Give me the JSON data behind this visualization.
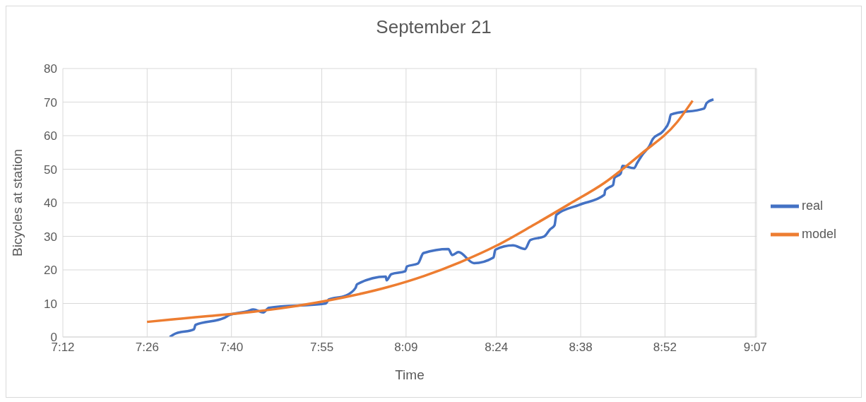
{
  "chart_data": {
    "type": "line",
    "title": "September 21",
    "xlabel": "Time",
    "ylabel": "Bicycles at station",
    "xlim": [
      7.2,
      9.12
    ],
    "xticks": [
      {
        "value": 7.2,
        "label": "7:12"
      },
      {
        "value": 7.4333,
        "label": "7:26"
      },
      {
        "value": 7.6667,
        "label": "7:40"
      },
      {
        "value": 7.9167,
        "label": "7:55"
      },
      {
        "value": 8.15,
        "label": "8:09"
      },
      {
        "value": 8.4,
        "label": "8:24"
      },
      {
        "value": 8.6333,
        "label": "8:38"
      },
      {
        "value": 8.8667,
        "label": "8:52"
      },
      {
        "value": 9.1167,
        "label": "9:07"
      }
    ],
    "ylim": [
      0,
      80
    ],
    "yticks": [
      0,
      10,
      20,
      30,
      40,
      50,
      60,
      70,
      80
    ],
    "grid": true,
    "legend": "right",
    "marker": "none",
    "line_style": "solid",
    "series": [
      {
        "name": "real",
        "color": "#4472c4",
        "x": [
          7.496,
          7.511,
          7.563,
          7.567,
          7.647,
          7.662,
          7.712,
          7.727,
          7.755,
          7.77,
          7.928,
          7.936,
          7.982,
          8.01,
          8.014,
          8.094,
          8.096,
          8.109,
          8.148,
          8.152,
          8.183,
          8.198,
          8.267,
          8.278,
          8.295,
          8.338,
          8.392,
          8.397,
          8.446,
          8.479,
          8.494,
          8.533,
          8.548,
          8.561,
          8.566,
          8.63,
          8.699,
          8.701,
          8.712,
          8.723,
          8.727,
          8.744,
          8.749,
          8.781,
          8.79,
          8.805,
          8.824,
          8.833,
          8.861,
          8.878,
          8.883,
          8.975,
          8.982,
          9.001
        ],
        "values": [
          0,
          1,
          2.3,
          3.6,
          5.7,
          6.6,
          7.7,
          8.2,
          7.3,
          8.7,
          10,
          11.2,
          12.3,
          14.6,
          15.7,
          18,
          16.9,
          18.7,
          19.6,
          21,
          21.9,
          25,
          26.2,
          24.4,
          25.3,
          22,
          23.7,
          26,
          27.3,
          26.2,
          28.9,
          30,
          32,
          33.3,
          36.4,
          39.4,
          42.4,
          43.7,
          44.6,
          45.3,
          47.4,
          48.7,
          51,
          50.3,
          51.9,
          54.4,
          57,
          59,
          61.3,
          64.2,
          66.3,
          68.1,
          69.7,
          70.8
        ]
      },
      {
        "name": "model",
        "color": "#ed7d31",
        "x": [
          7.433,
          7.5,
          7.6,
          7.7,
          7.8,
          7.9,
          8.0,
          8.1,
          8.2,
          8.3,
          8.4,
          8.5,
          8.6,
          8.7,
          8.8,
          8.9,
          8.943
        ],
        "values": [
          4.5,
          5.2,
          6.2,
          7.2,
          8.5,
          10.2,
          12.3,
          14.9,
          18.2,
          22.3,
          27.2,
          33.2,
          39.5,
          46,
          54.5,
          64,
          70.4
        ]
      }
    ]
  }
}
